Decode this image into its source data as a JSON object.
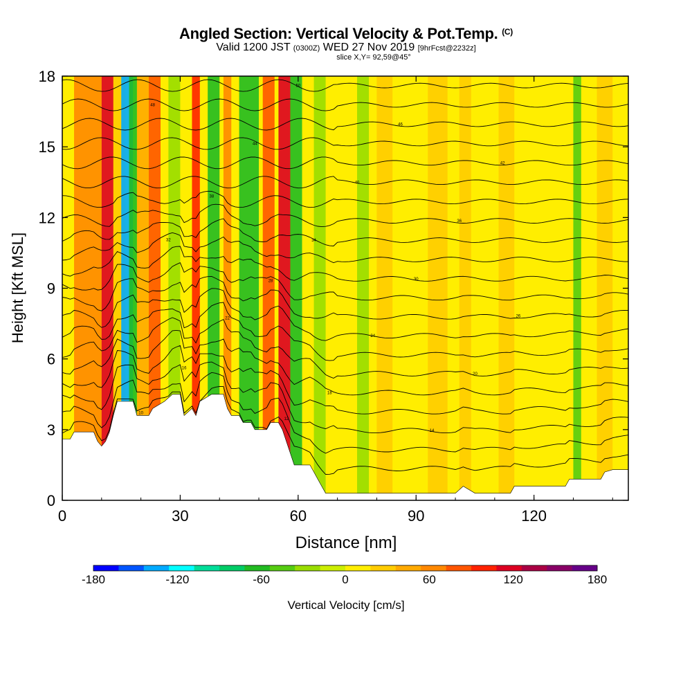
{
  "chart_data": {
    "type": "heatmap",
    "title": "Angled Section: Vertical Velocity & Pot.Temp.",
    "title_units": "(C)",
    "subtitle_main_a": "Valid 1200 JST",
    "subtitle_small_a": "(0300Z)",
    "subtitle_main_b": "WED 27 Nov 2019",
    "subtitle_small_b": "[9hrFcst@2232z]",
    "slice_text": "slice X,Y= 92,59@45°",
    "xlabel": "Distance [nm]",
    "ylabel": "Height [Kft MSL]",
    "xlim": [
      0,
      144
    ],
    "ylim": [
      0,
      18
    ],
    "x_ticks": [
      "0",
      "30",
      "60",
      "90",
      "120"
    ],
    "y_ticks": [
      "0",
      "3",
      "6",
      "9",
      "12",
      "15",
      "18"
    ],
    "colorbar": {
      "label": "Vertical Velocity [cm/s]",
      "min": -180,
      "max": 180,
      "tick_labels": [
        "-180",
        "-120",
        "-60",
        "0",
        "60",
        "120",
        "180"
      ],
      "colors": [
        "#0000ff",
        "#0055ff",
        "#00aaff",
        "#00ffff",
        "#00dd99",
        "#00cc66",
        "#22bb22",
        "#55cc11",
        "#99dd00",
        "#ccee00",
        "#ffee00",
        "#ffcc00",
        "#ffaa00",
        "#ff8800",
        "#ff5500",
        "#ff2200",
        "#dd0022",
        "#aa0044",
        "#880066",
        "#660088"
      ]
    },
    "terrain_kft": [
      [
        0,
        2.6
      ],
      [
        2,
        2.6
      ],
      [
        3,
        2.9
      ],
      [
        8,
        2.9
      ],
      [
        9,
        2.5
      ],
      [
        10,
        2.3
      ],
      [
        11,
        2.5
      ],
      [
        12,
        2.9
      ],
      [
        13,
        3.6
      ],
      [
        14,
        4.2
      ],
      [
        18,
        4.2
      ],
      [
        19,
        3.6
      ],
      [
        22,
        3.6
      ],
      [
        23,
        3.9
      ],
      [
        26,
        4.2
      ],
      [
        28,
        4.5
      ],
      [
        30,
        4.5
      ],
      [
        31,
        3.6
      ],
      [
        33,
        3.9
      ],
      [
        34,
        3.6
      ],
      [
        35,
        4.2
      ],
      [
        38,
        4.5
      ],
      [
        41,
        4.5
      ],
      [
        42,
        3.9
      ],
      [
        43,
        3.6
      ],
      [
        45,
        3.6
      ],
      [
        46,
        3.3
      ],
      [
        48,
        3.3
      ],
      [
        49,
        3.0
      ],
      [
        52,
        3.0
      ],
      [
        53,
        3.3
      ],
      [
        55,
        3.3
      ],
      [
        56,
        3.0
      ],
      [
        57,
        2.5
      ],
      [
        58,
        2.0
      ],
      [
        59,
        1.5
      ],
      [
        63,
        1.5
      ],
      [
        64,
        1.2
      ],
      [
        65,
        0.9
      ],
      [
        66,
        0.6
      ],
      [
        67,
        0.3
      ],
      [
        100,
        0.3
      ],
      [
        102,
        0.6
      ],
      [
        105,
        0.3
      ],
      [
        114,
        0.3
      ],
      [
        115,
        0.6
      ],
      [
        128,
        0.6
      ],
      [
        129,
        0.9
      ],
      [
        137,
        0.9
      ],
      [
        138,
        1.2
      ],
      [
        140,
        1.3
      ],
      [
        144,
        1.3
      ]
    ],
    "velocity_bands": [
      {
        "x": 3,
        "w": 7,
        "v": 60
      },
      {
        "x": 10,
        "w": 3,
        "v": 110
      },
      {
        "x": 13,
        "w": 3,
        "v": 30
      },
      {
        "x": 15,
        "w": 3,
        "v": -130
      },
      {
        "x": 17,
        "w": 2,
        "v": -60
      },
      {
        "x": 19,
        "w": 3,
        "v": 40
      },
      {
        "x": 22,
        "w": 3,
        "v": 80
      },
      {
        "x": 27,
        "w": 3,
        "v": -20
      },
      {
        "x": 33,
        "w": 2,
        "v": 100
      },
      {
        "x": 37,
        "w": 3,
        "v": -60
      },
      {
        "x": 41,
        "w": 2,
        "v": 60
      },
      {
        "x": 45,
        "w": 5,
        "v": -70
      },
      {
        "x": 51,
        "w": 3,
        "v": 80
      },
      {
        "x": 55,
        "w": 3,
        "v": 110
      },
      {
        "x": 58,
        "w": 3,
        "v": -60
      },
      {
        "x": 64,
        "w": 3,
        "v": -30
      },
      {
        "x": 75,
        "w": 3,
        "v": -30
      },
      {
        "x": 80,
        "w": 4,
        "v": 20
      },
      {
        "x": 93,
        "w": 5,
        "v": 20
      },
      {
        "x": 101,
        "w": 3,
        "v": 20
      },
      {
        "x": 111,
        "w": 4,
        "v": 20
      },
      {
        "x": 130,
        "w": 2,
        "v": -50
      },
      {
        "x": 136,
        "w": 4,
        "v": 20
      }
    ],
    "isentrope_labels": [
      "10",
      "12",
      "14",
      "16",
      "18",
      "20",
      "22",
      "24",
      "26",
      "28",
      "30",
      "32",
      "34",
      "36",
      "38",
      "40",
      "42",
      "44",
      "46",
      "48",
      "50"
    ]
  }
}
